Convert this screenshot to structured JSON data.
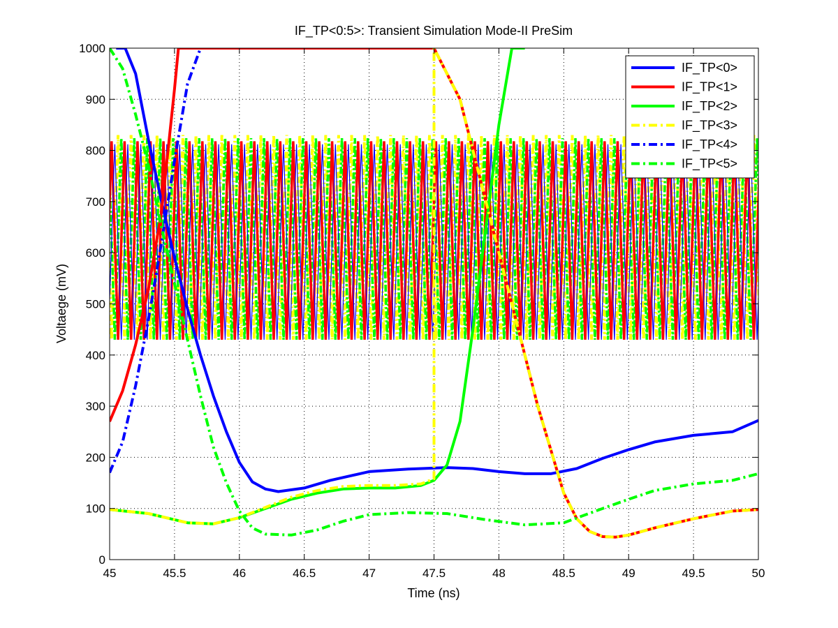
{
  "chart_data": {
    "type": "line",
    "title": "IF_TP<0:5>: Transient Simulation Mode-II PreSim",
    "xlabel": "Time (ns)",
    "ylabel": "Voltaege (mV)",
    "xlim": [
      45,
      50
    ],
    "ylim": [
      0,
      1000
    ],
    "xticks": [
      45,
      45.5,
      46,
      46.5,
      47,
      47.5,
      48,
      48.5,
      49,
      49.5,
      50
    ],
    "xtick_labels": [
      "45",
      "45.5",
      "46",
      "46.5",
      "47",
      "47.5",
      "48",
      "48.5",
      "49",
      "49.5",
      "50"
    ],
    "yticks": [
      0,
      100,
      200,
      300,
      400,
      500,
      600,
      700,
      800,
      900,
      1000
    ],
    "ytick_labels": [
      "0",
      "100",
      "200",
      "300",
      "400",
      "500",
      "600",
      "700",
      "800",
      "900",
      "1000"
    ],
    "grid": true,
    "legend_position": "top-right",
    "oscillation_band": {
      "period_ns": 0.1,
      "low_mV": 430,
      "high_mV": 830,
      "colors": [
        "#ffff00",
        "#00ff00",
        "#ff0000",
        "#0000ff"
      ]
    },
    "series": [
      {
        "name": "IF_TP<0>",
        "color": "#0000ff",
        "style": "solid",
        "x": [
          45.05,
          45.12,
          45.2,
          45.3,
          45.4,
          45.5,
          45.6,
          45.7,
          45.8,
          45.9,
          46.0,
          46.1,
          46.2,
          46.3,
          46.5,
          46.7,
          47.0,
          47.3,
          47.6,
          47.8,
          48.0,
          48.2,
          48.4,
          48.6,
          48.8,
          49.0,
          49.2,
          49.5,
          49.8,
          50.0
        ],
        "y": [
          1000,
          1000,
          950,
          820,
          700,
          590,
          490,
          400,
          320,
          250,
          190,
          152,
          138,
          133,
          140,
          155,
          172,
          177,
          180,
          178,
          172,
          168,
          168,
          178,
          198,
          215,
          230,
          243,
          250,
          272
        ]
      },
      {
        "name": "IF_TP<1>",
        "color": "#ff0000",
        "style": "solid",
        "x": [
          45.0,
          45.1,
          45.2,
          45.3,
          45.4,
          45.45,
          45.5,
          45.53,
          45.6,
          47.5,
          47.7,
          47.9,
          48.1,
          48.3,
          48.5,
          48.6,
          48.7,
          48.8,
          48.9,
          49.0,
          49.2,
          49.5,
          49.8,
          50.0
        ],
        "y": [
          270,
          330,
          420,
          530,
          680,
          800,
          920,
          1000,
          1000,
          1000,
          900,
          700,
          500,
          300,
          130,
          80,
          55,
          45,
          44,
          48,
          62,
          80,
          95,
          98
        ]
      },
      {
        "name": "IF_TP<2>",
        "color": "#00ff00",
        "style": "solid",
        "x": [
          45.0,
          45.3,
          45.6,
          45.8,
          46.0,
          46.2,
          46.4,
          46.6,
          46.8,
          47.0,
          47.2,
          47.4,
          47.5,
          47.6,
          47.7,
          47.8,
          47.9,
          48.0,
          48.1,
          48.2
        ],
        "y": [
          98,
          90,
          72,
          70,
          82,
          100,
          118,
          130,
          138,
          140,
          140,
          145,
          155,
          185,
          270,
          450,
          650,
          850,
          1000,
          1000
        ]
      },
      {
        "name": "IF_TP<3>",
        "color": "#ffff00",
        "style": "dashdot",
        "x": [
          45.0,
          45.3,
          45.6,
          45.8,
          46.0,
          46.2,
          46.4,
          46.6,
          46.8,
          47.0,
          47.2,
          47.4,
          47.5,
          47.5,
          47.7,
          47.9,
          48.1,
          48.3,
          48.5,
          48.6,
          48.7,
          48.8,
          48.9,
          49.0,
          49.2,
          49.5,
          49.8,
          50.0
        ],
        "y": [
          98,
          90,
          72,
          70,
          82,
          102,
          122,
          135,
          143,
          145,
          145,
          148,
          158,
          1000,
          900,
          700,
          500,
          300,
          130,
          80,
          55,
          45,
          44,
          48,
          62,
          80,
          95,
          98
        ]
      },
      {
        "name": "IF_TP<4>",
        "color": "#0000ff",
        "style": "dashdot",
        "x": [
          45.0,
          45.1,
          45.2,
          45.3,
          45.4,
          45.5,
          45.6,
          45.7
        ],
        "y": [
          170,
          230,
          340,
          470,
          620,
          780,
          930,
          1000
        ]
      },
      {
        "name": "IF_TP<5>",
        "color": "#00ff00",
        "style": "dashdot",
        "x": [
          45.0,
          45.1,
          45.2,
          45.3,
          45.4,
          45.5,
          45.6,
          45.7,
          45.8,
          45.9,
          46.0,
          46.1,
          46.2,
          46.4,
          46.6,
          46.8,
          47.0,
          47.3,
          47.6,
          47.9,
          48.2,
          48.5,
          48.8,
          49.0,
          49.2,
          49.5,
          49.8,
          50.0
        ],
        "y": [
          1000,
          960,
          870,
          770,
          650,
          540,
          430,
          320,
          220,
          150,
          95,
          62,
          50,
          48,
          58,
          75,
          88,
          92,
          90,
          78,
          68,
          72,
          100,
          118,
          135,
          148,
          155,
          168
        ]
      }
    ]
  }
}
